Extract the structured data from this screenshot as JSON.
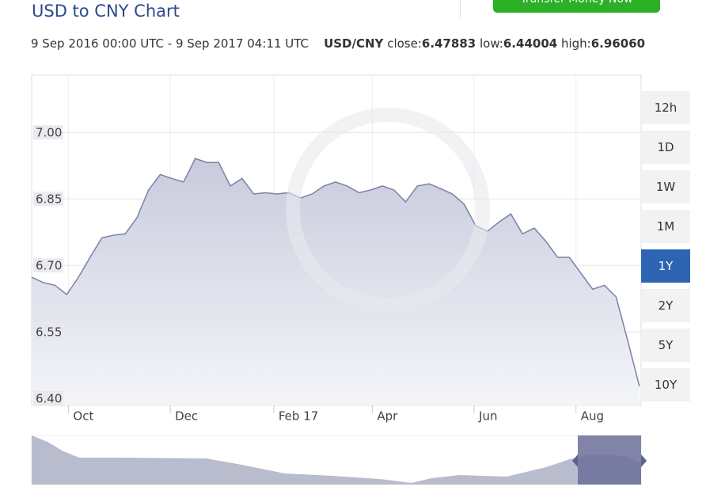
{
  "header": {
    "title": "USD to CNY Chart",
    "cta": "Transfer Money Now",
    "range": "9 Sep 2016 00:00 UTC - 9 Sep 2017 04:11 UTC",
    "pair": "USD/CNY",
    "close_label": "close:",
    "close": "6.47883",
    "low_label": "low:",
    "low": "6.44004",
    "high_label": "high:",
    "high": "6.96060"
  },
  "range_buttons": {
    "labels": [
      "12h",
      "1D",
      "1W",
      "1M",
      "1Y",
      "2Y",
      "5Y",
      "10Y"
    ],
    "active": "1Y"
  },
  "chart_data": {
    "type": "line",
    "color": "#7b80a8",
    "grid": true,
    "x": [
      "2016-09-09",
      "2016-09-16",
      "2016-09-23",
      "2016-09-30",
      "2016-10-07",
      "2016-10-14",
      "2016-10-21",
      "2016-10-28",
      "2016-11-04",
      "2016-11-11",
      "2016-11-18",
      "2016-11-25",
      "2016-12-02",
      "2016-12-09",
      "2016-12-16",
      "2016-12-23",
      "2016-12-30",
      "2017-01-06",
      "2017-01-13",
      "2017-01-20",
      "2017-01-27",
      "2017-02-03",
      "2017-02-10",
      "2017-02-17",
      "2017-02-24",
      "2017-03-03",
      "2017-03-10",
      "2017-03-17",
      "2017-03-24",
      "2017-03-31",
      "2017-04-07",
      "2017-04-14",
      "2017-04-21",
      "2017-04-28",
      "2017-05-05",
      "2017-05-12",
      "2017-05-19",
      "2017-05-26",
      "2017-06-02",
      "2017-06-09",
      "2017-06-16",
      "2017-06-23",
      "2017-06-30",
      "2017-07-07",
      "2017-07-14",
      "2017-07-21",
      "2017-07-28",
      "2017-08-04",
      "2017-08-11",
      "2017-08-18",
      "2017-08-25",
      "2017-09-01",
      "2017-09-08"
    ],
    "values": [
      6.673,
      6.661,
      6.655,
      6.634,
      6.673,
      6.718,
      6.762,
      6.768,
      6.771,
      6.807,
      6.87,
      6.905,
      6.896,
      6.888,
      6.941,
      6.932,
      6.932,
      6.879,
      6.896,
      6.861,
      6.864,
      6.861,
      6.864,
      6.852,
      6.861,
      6.879,
      6.888,
      6.879,
      6.864,
      6.87,
      6.879,
      6.87,
      6.843,
      6.879,
      6.884,
      6.873,
      6.861,
      6.838,
      6.789,
      6.777,
      6.798,
      6.816,
      6.771,
      6.784,
      6.754,
      6.718,
      6.718,
      6.682,
      6.646,
      6.655,
      6.629,
      6.53,
      6.427
    ],
    "xlim": [
      "2016-09-09",
      "2017-09-09"
    ],
    "xticks": [
      {
        "value": "2016-10-01",
        "label": "Oct"
      },
      {
        "value": "2016-12-01",
        "label": "Dec"
      },
      {
        "value": "2017-02-01",
        "label": "Feb 17"
      },
      {
        "value": "2017-04-01",
        "label": "Apr"
      },
      {
        "value": "2017-06-01",
        "label": "Jun"
      },
      {
        "value": "2017-08-01",
        "label": "Aug"
      }
    ],
    "ylim": [
      6.384,
      7.129
    ],
    "yticks": [
      {
        "value": 6.4,
        "label": "6.40"
      },
      {
        "value": 6.55,
        "label": "6.55"
      },
      {
        "value": 6.7,
        "label": "6.70"
      },
      {
        "value": 6.85,
        "label": "6.85"
      },
      {
        "value": 7.0,
        "label": "7.00"
      }
    ]
  }
}
